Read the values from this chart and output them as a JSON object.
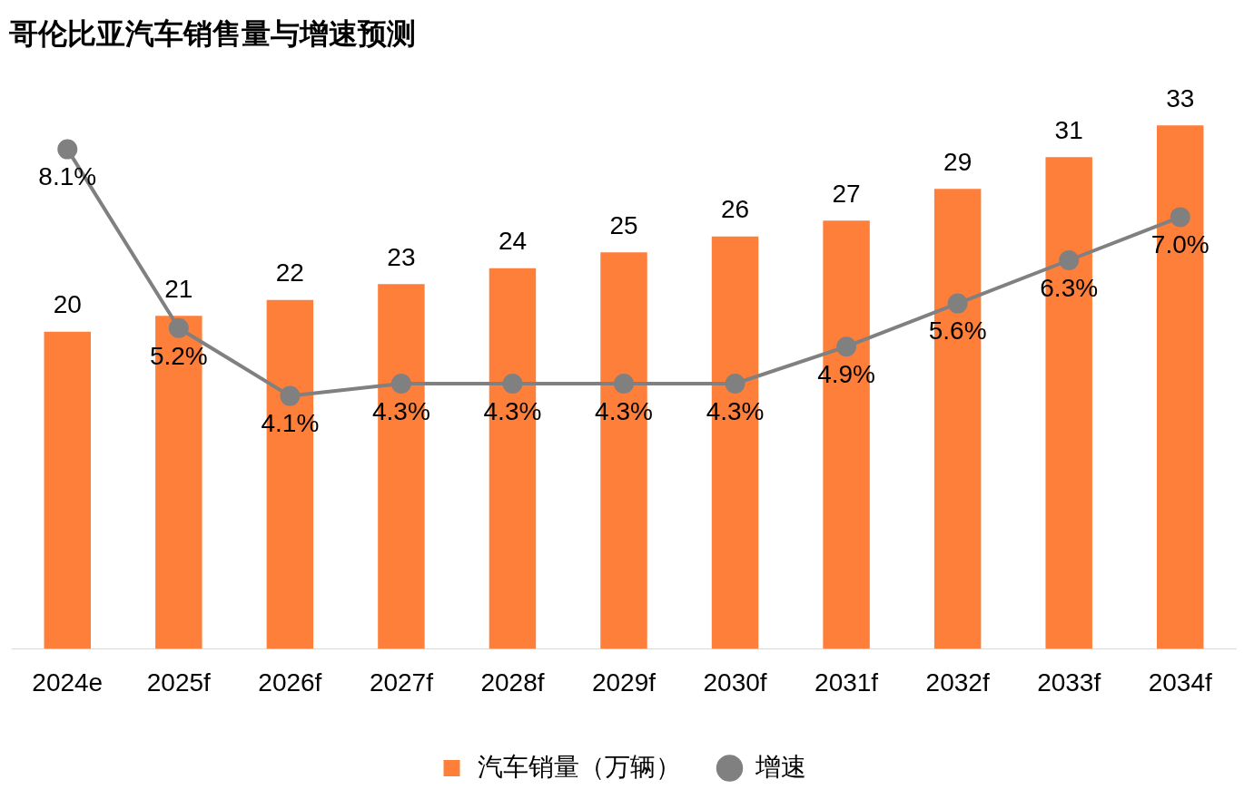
{
  "chart_data": {
    "type": "bar",
    "title": "哥伦比亚汽车销售量与增速预测",
    "categories": [
      "2024e",
      "2025f",
      "2026f",
      "2027f",
      "2028f",
      "2029f",
      "2030f",
      "2031f",
      "2032f",
      "2033f",
      "2034f"
    ],
    "series": [
      {
        "name": "汽车销量（万辆）",
        "color": "#fe7f3a",
        "values": [
          20,
          21,
          22,
          23,
          24,
          25,
          26,
          27,
          29,
          31,
          33
        ]
      },
      {
        "name": "增速",
        "type": "line",
        "axis": "y2",
        "color": "#808080",
        "marker": "circle",
        "line_style": "solid",
        "values": [
          8.1,
          5.2,
          4.1,
          4.3,
          4.3,
          4.3,
          4.3,
          4.9,
          5.6,
          6.3,
          7.0
        ],
        "value_labels": [
          "8.1%",
          "5.2%",
          "4.1%",
          "4.3%",
          "4.3%",
          "4.3%",
          "4.3%",
          "4.9%",
          "5.6%",
          "6.3%",
          "7.0%"
        ]
      }
    ],
    "tick_labels": "x",
    "data_labels": true,
    "grid": false,
    "legend": "bottom"
  }
}
